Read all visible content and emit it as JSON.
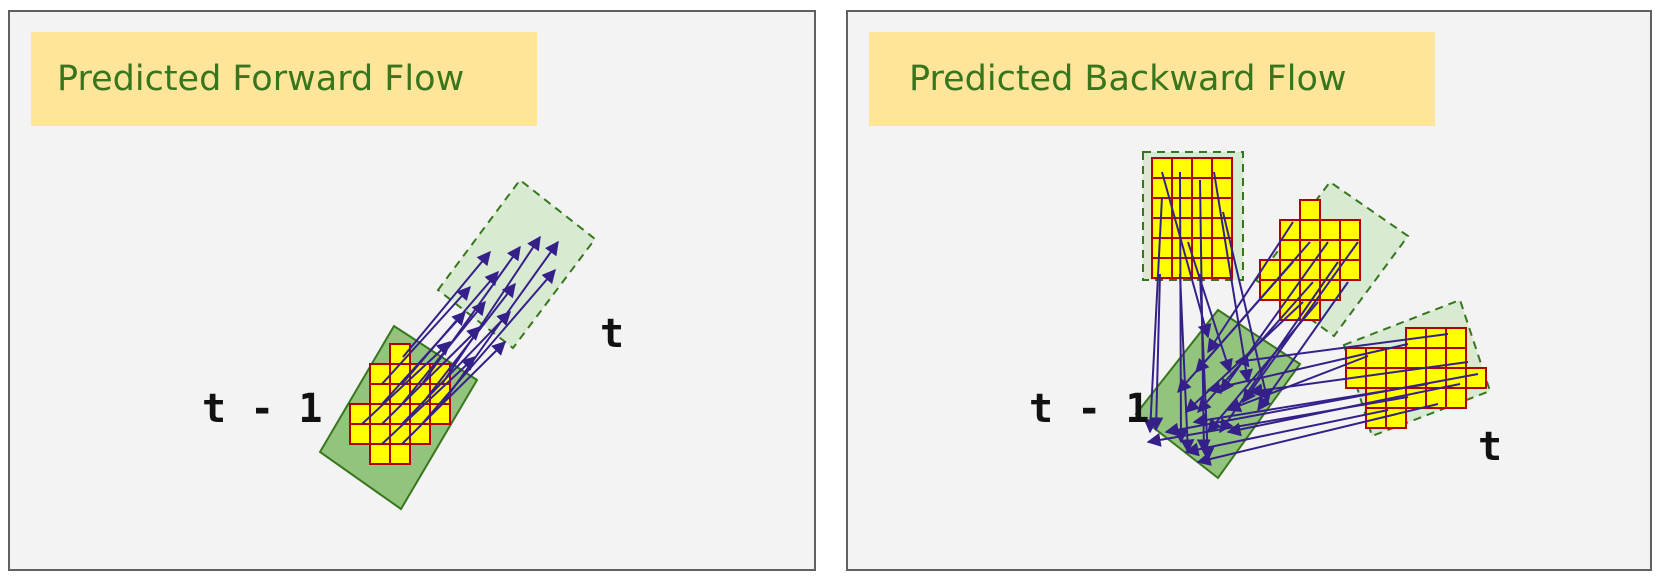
{
  "colors": {
    "panel_bg": "#f3f3f3",
    "title_bg": "#ffe599",
    "title_text": "#38761d",
    "region_prev": "#93c47d",
    "region_curr": "#d9ead3",
    "pixel_fill": "#ffff00",
    "pixel_stroke": "#b00000",
    "arrow": "#35208a"
  },
  "panels": [
    {
      "title": "Predicted Forward Flow",
      "label_prev": "t - 1",
      "label_curr": "t"
    },
    {
      "title": "Predicted Backward Flow",
      "label_prev": "t - 1",
      "label_curr": "t"
    }
  ]
}
